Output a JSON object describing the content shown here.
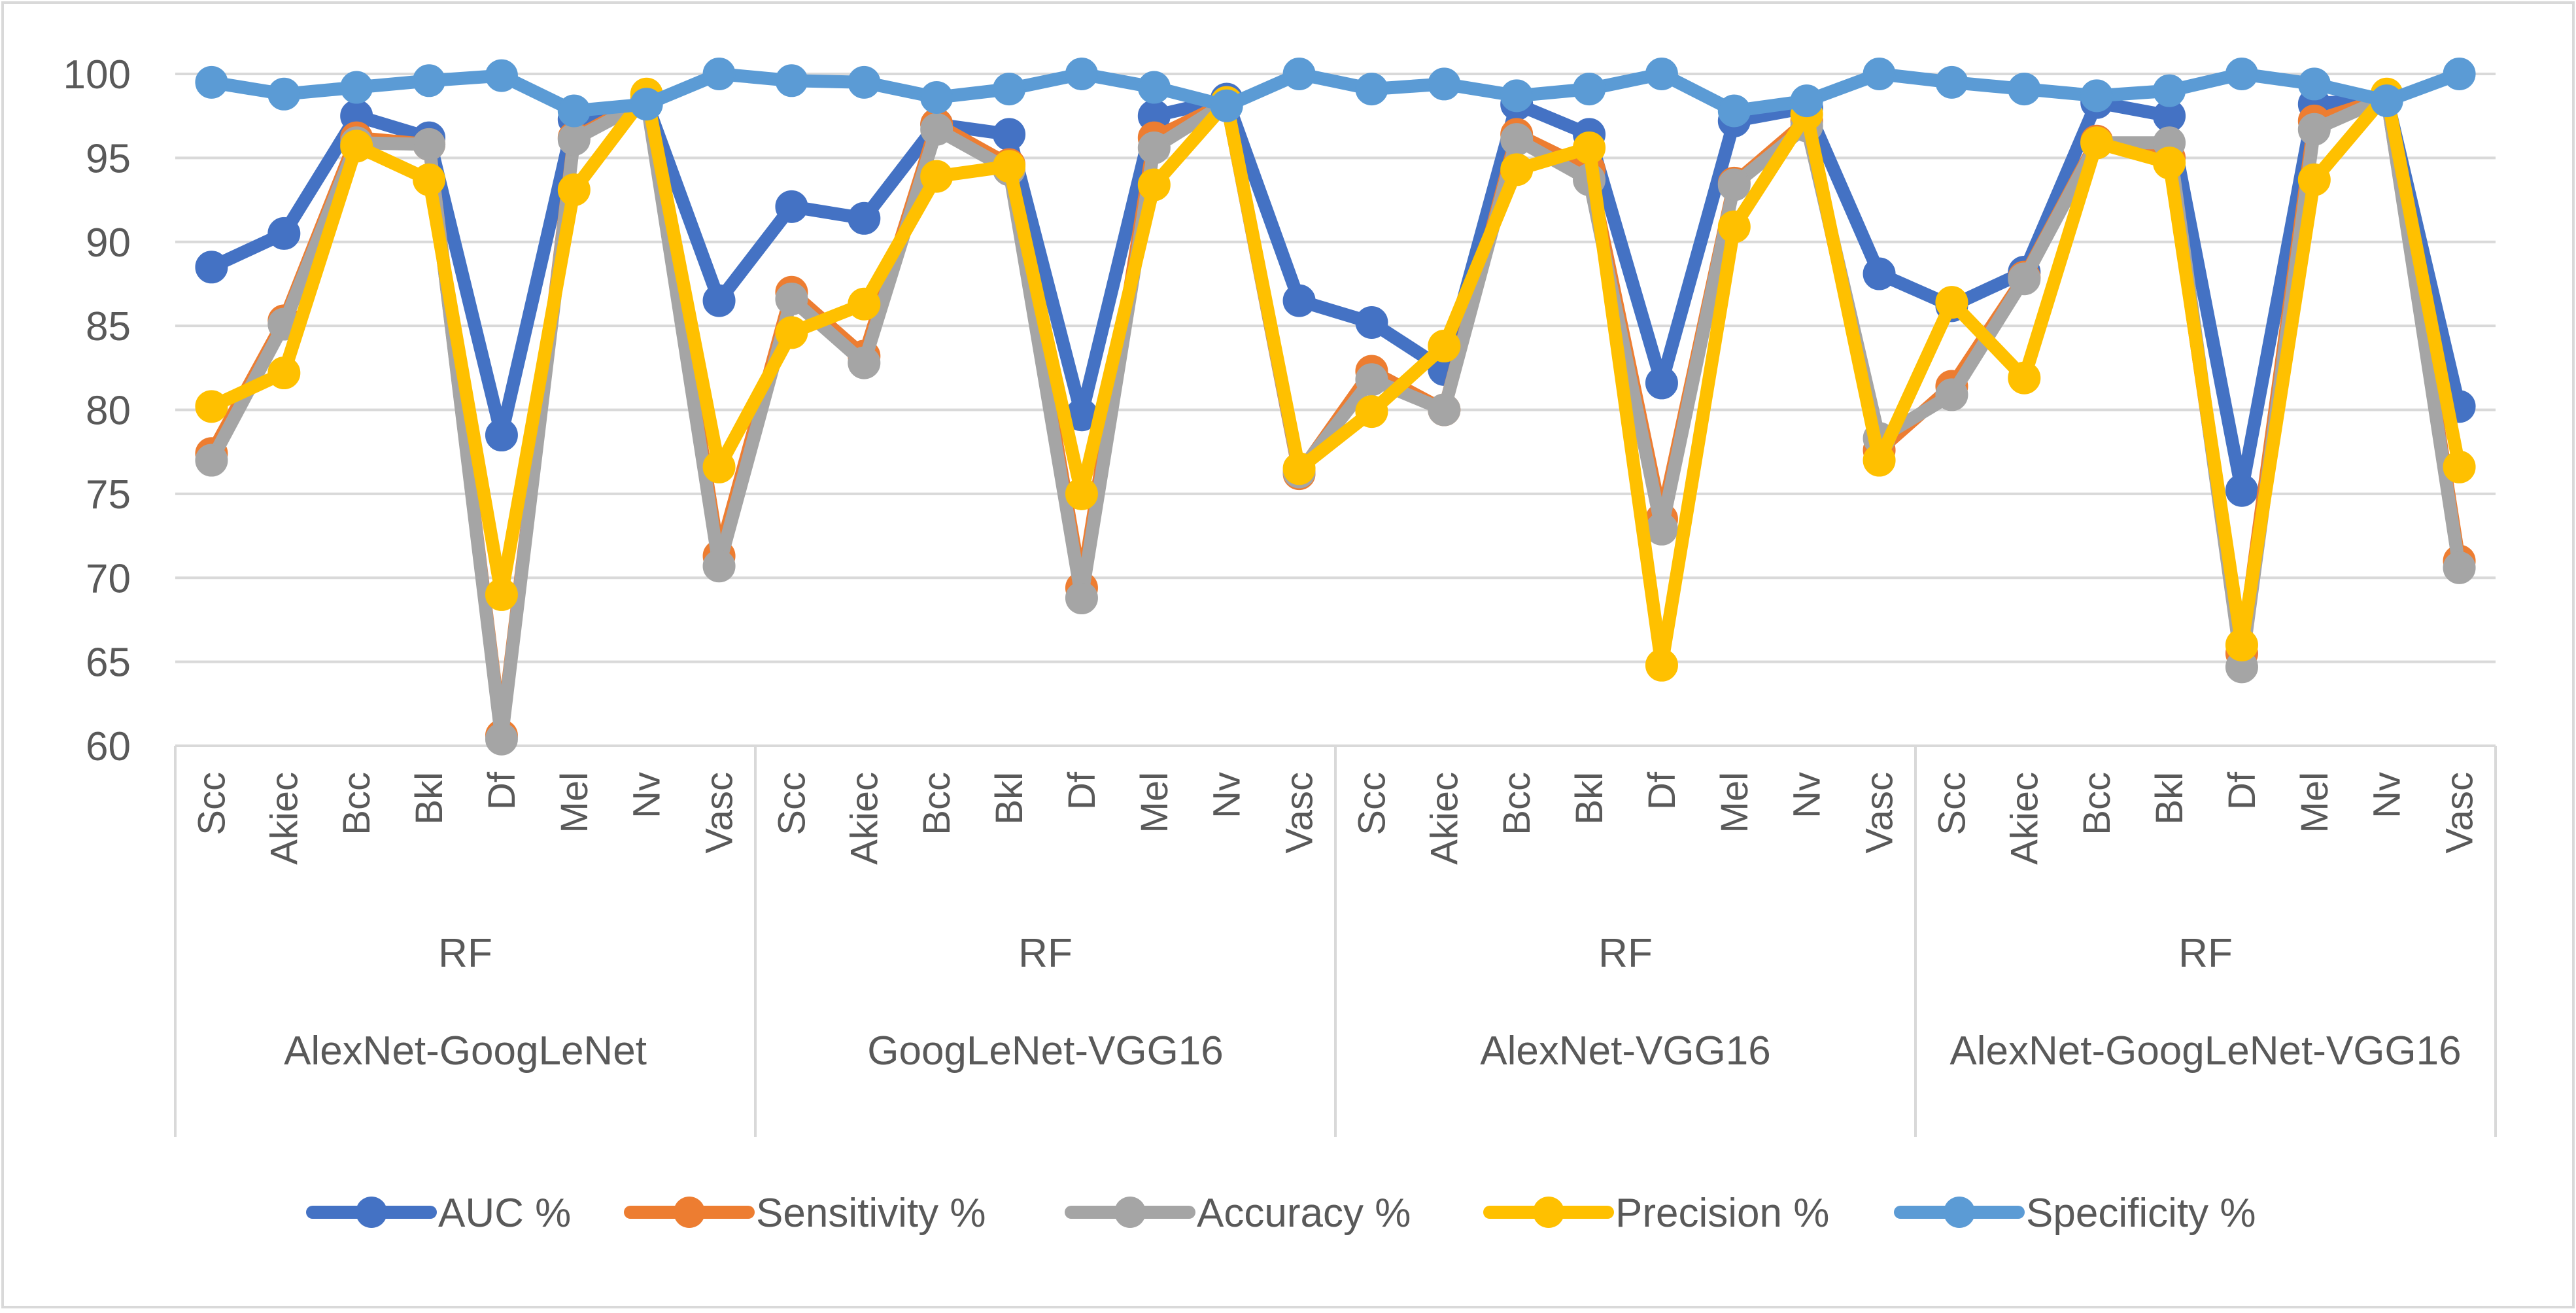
{
  "chart_data": {
    "type": "line",
    "title": "",
    "xlabel": "",
    "ylabel": "",
    "ylim": [
      60,
      100
    ],
    "yticks": [
      60,
      65,
      70,
      75,
      80,
      85,
      90,
      95,
      100
    ],
    "grid": true,
    "legend_position": "bottom",
    "categories": [
      "Scc",
      "Akiec",
      "Bcc",
      "Bkl",
      "Df",
      "Mel",
      "Nv",
      "Vasc",
      "Scc",
      "Akiec",
      "Bcc",
      "Bkl",
      "Df",
      "Mel",
      "Nv",
      "Vasc",
      "Scc",
      "Akiec",
      "Bcc",
      "Bkl",
      "Df",
      "Mel",
      "Nv",
      "Vasc",
      "Scc",
      "Akiec",
      "Bcc",
      "Bkl",
      "Df",
      "Mel",
      "Nv",
      "Vasc"
    ],
    "groups": [
      {
        "classifier": "RF",
        "name": "AlexNet-GoogLeNet"
      },
      {
        "classifier": "RF",
        "name": "GoogLeNet-VGG16"
      },
      {
        "classifier": "RF",
        "name": "AlexNet-VGG16"
      },
      {
        "classifier": "RF",
        "name": "AlexNet-GoogLeNet-VGG16"
      }
    ],
    "series": [
      {
        "name": "AUC %",
        "color": "#4472C4",
        "values": [
          88.5,
          90.5,
          97.5,
          96.2,
          78.5,
          97.3,
          98.3,
          86.5,
          92.1,
          91.4,
          97.0,
          96.4,
          79.7,
          97.5,
          98.5,
          86.5,
          85.2,
          82.4,
          98.2,
          96.4,
          81.6,
          97.2,
          98.0,
          88.1,
          86.2,
          88.2,
          98.3,
          97.5,
          75.2,
          98.2,
          98.6,
          80.2
        ]
      },
      {
        "name": "Sensitivity %",
        "color": "#ED7D31",
        "values": [
          77.4,
          85.3,
          96.2,
          95.8,
          60.6,
          96.2,
          98.5,
          71.3,
          87.0,
          83.2,
          97.0,
          94.6,
          69.4,
          96.2,
          98.3,
          76.2,
          82.3,
          80.0,
          96.4,
          94.3,
          73.5,
          93.5,
          97.2,
          77.6,
          81.4,
          87.9,
          96.0,
          95.0,
          65.5,
          97.2,
          98.6,
          71.0
        ]
      },
      {
        "name": "Accuracy %",
        "color": "#A5A5A5",
        "values": [
          77.0,
          85.1,
          95.9,
          95.8,
          60.4,
          96.1,
          98.4,
          70.7,
          86.6,
          82.8,
          96.7,
          94.3,
          68.8,
          95.6,
          98.3,
          76.3,
          81.8,
          80.0,
          96.1,
          93.7,
          72.9,
          93.4,
          96.9,
          78.3,
          80.9,
          87.8,
          95.9,
          95.9,
          64.7,
          96.7,
          98.6,
          70.6
        ]
      },
      {
        "name": "Precision %",
        "color": "#FFC000",
        "values": [
          80.2,
          82.2,
          95.7,
          93.7,
          69.0,
          93.1,
          98.8,
          76.6,
          84.6,
          86.3,
          93.9,
          94.5,
          75.0,
          93.4,
          98.3,
          76.5,
          79.9,
          83.8,
          94.3,
          95.6,
          64.8,
          90.9,
          97.6,
          77.0,
          86.4,
          81.9,
          95.9,
          94.7,
          66.0,
          93.7,
          98.8,
          76.6
        ]
      },
      {
        "name": "Specificity %",
        "color": "#5B9BD5",
        "values": [
          99.5,
          98.8,
          99.2,
          99.6,
          99.9,
          97.8,
          98.2,
          100.0,
          99.6,
          99.5,
          98.6,
          99.1,
          100.0,
          99.2,
          98.1,
          100.0,
          99.1,
          99.4,
          98.7,
          99.1,
          100.0,
          97.8,
          98.4,
          100.0,
          99.5,
          99.1,
          98.7,
          99.0,
          100.0,
          99.4,
          98.4,
          100.0
        ]
      }
    ]
  }
}
